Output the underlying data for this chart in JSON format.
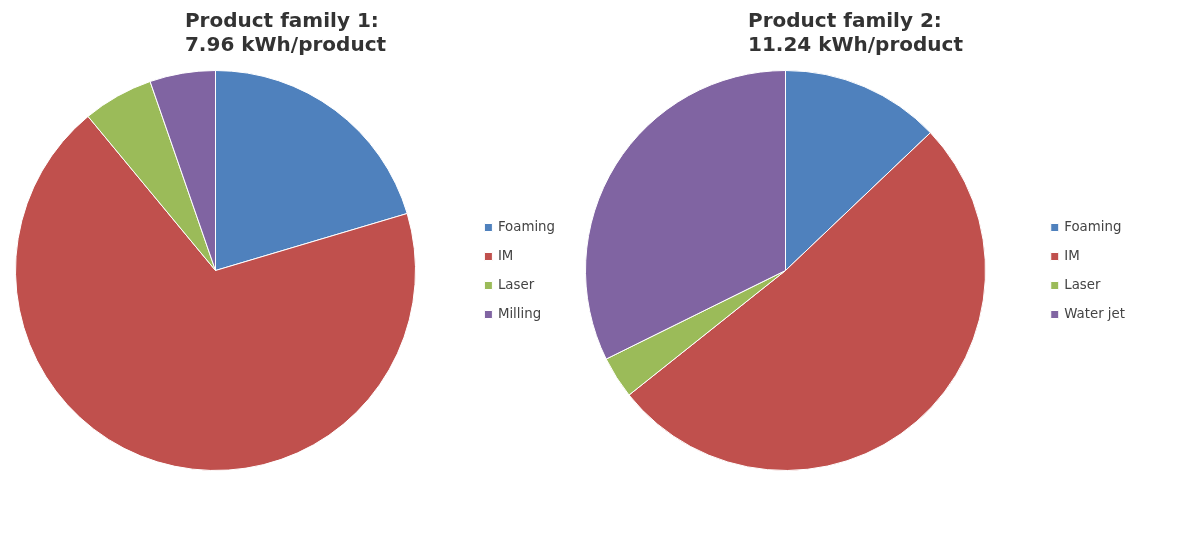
{
  "chart_data": [
    {
      "type": "pie",
      "title": "Product family 1:\n7.96 kWh/product",
      "categories": [
        "Foaming",
        "IM",
        "Laser",
        "Milling"
      ],
      "values": [
        20.4,
        68.6,
        5.7,
        5.3
      ],
      "colors": [
        "#4f81bd",
        "#c0504d",
        "#9bbb59",
        "#8064a2"
      ],
      "legend": "right"
    },
    {
      "type": "pie",
      "title": "Product family 2:\n11.24 kWh/product",
      "categories": [
        "Foaming",
        "IM",
        "Laser",
        "Water jet"
      ],
      "values": [
        12.9,
        51.4,
        3.4,
        32.3
      ],
      "colors": [
        "#4f81bd",
        "#c0504d",
        "#9bbb59",
        "#8064a2"
      ],
      "legend": "right"
    }
  ]
}
